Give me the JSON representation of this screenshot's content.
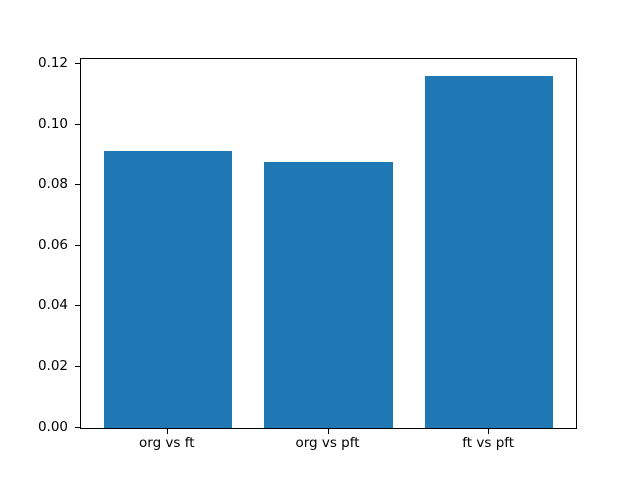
{
  "chart_data": {
    "type": "bar",
    "title": "",
    "xlabel": "",
    "ylabel": "",
    "categories": [
      "org vs ft",
      "org vs pft",
      "ft vs pft"
    ],
    "values": [
      0.0915,
      0.0878,
      0.1161
    ],
    "yticks": [
      {
        "label": "0.00",
        "value": 0.0
      },
      {
        "label": "0.02",
        "value": 0.02
      },
      {
        "label": "0.04",
        "value": 0.04
      },
      {
        "label": "0.06",
        "value": 0.06
      },
      {
        "label": "0.08",
        "value": 0.08
      },
      {
        "label": "0.10",
        "value": 0.1
      },
      {
        "label": "0.12",
        "value": 0.12
      }
    ],
    "ylim": [
      0,
      0.1218
    ],
    "grid": false,
    "legend": null,
    "bar_color": "#1f77b4",
    "spine_color": "#000000",
    "background_color": "#ffffff"
  }
}
